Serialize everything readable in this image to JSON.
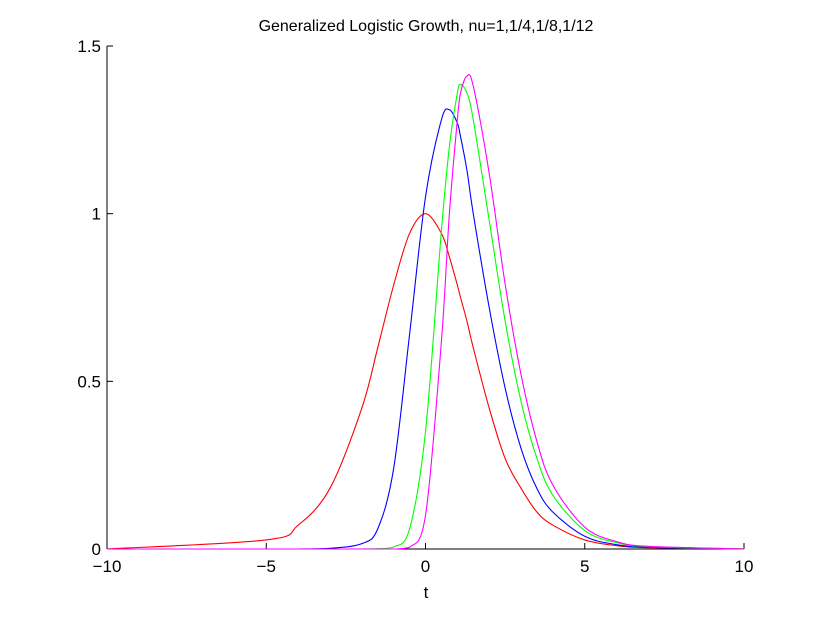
{
  "chart_data": {
    "type": "line",
    "title": "Generalized Logistic Growth, nu=1,1/4,1/8,1/12",
    "xlabel": "t",
    "ylabel": "",
    "xlim": [
      -10,
      10
    ],
    "ylim": [
      0,
      1.5
    ],
    "xticks": [
      -10,
      -5,
      0,
      5,
      10
    ],
    "xtick_labels": [
      "−10",
      "−5",
      "0",
      "5",
      "10"
    ],
    "yticks": [
      0,
      0.5,
      1,
      1.5
    ],
    "ytick_labels": [
      "0",
      "0.5",
      "1",
      "1.5"
    ],
    "grid": false,
    "legend": "none",
    "x": [
      -10,
      -5,
      -4,
      -3,
      -2,
      -1.5,
      -1,
      -0.5,
      0,
      0.5,
      0.75,
      1,
      1.1,
      1.3,
      1.5,
      2,
      2.5,
      3,
      3.5,
      4,
      5,
      6,
      7,
      10
    ],
    "series": [
      {
        "color": "#ff0000",
        "values": [
          0.0002,
          0.027,
          0.071,
          0.181,
          0.42,
          0.6,
          0.787,
          0.941,
          1.0,
          0.941,
          0.871,
          0.787,
          0.75,
          0.68,
          0.6,
          0.42,
          0.27,
          0.181,
          0.11,
          0.071,
          0.027,
          0.01,
          0.004,
          0.0002
        ]
      },
      {
        "color": "#0000ff",
        "values": [
          0.0,
          0.0,
          0.0,
          0.002,
          0.016,
          0.06,
          0.24,
          0.64,
          1.05,
          1.28,
          1.31,
          1.27,
          1.23,
          1.13,
          1.0,
          0.72,
          0.48,
          0.3,
          0.18,
          0.11,
          0.038,
          0.013,
          0.005,
          0.0
        ]
      },
      {
        "color": "#00ff00",
        "values": [
          0.0,
          0.0,
          0.0,
          0.0,
          0.0,
          0.001,
          0.006,
          0.06,
          0.35,
          0.95,
          1.2,
          1.36,
          1.385,
          1.36,
          1.28,
          0.98,
          0.68,
          0.44,
          0.27,
          0.16,
          0.055,
          0.019,
          0.007,
          0.0
        ]
      },
      {
        "color": "#ff00ff",
        "values": [
          0.0,
          0.0,
          0.0,
          0.0,
          0.0,
          0.0,
          0.0,
          0.005,
          0.1,
          0.62,
          1.0,
          1.28,
          1.36,
          1.41,
          1.38,
          1.12,
          0.79,
          0.52,
          0.32,
          0.19,
          0.065,
          0.022,
          0.008,
          0.0
        ]
      }
    ]
  }
}
